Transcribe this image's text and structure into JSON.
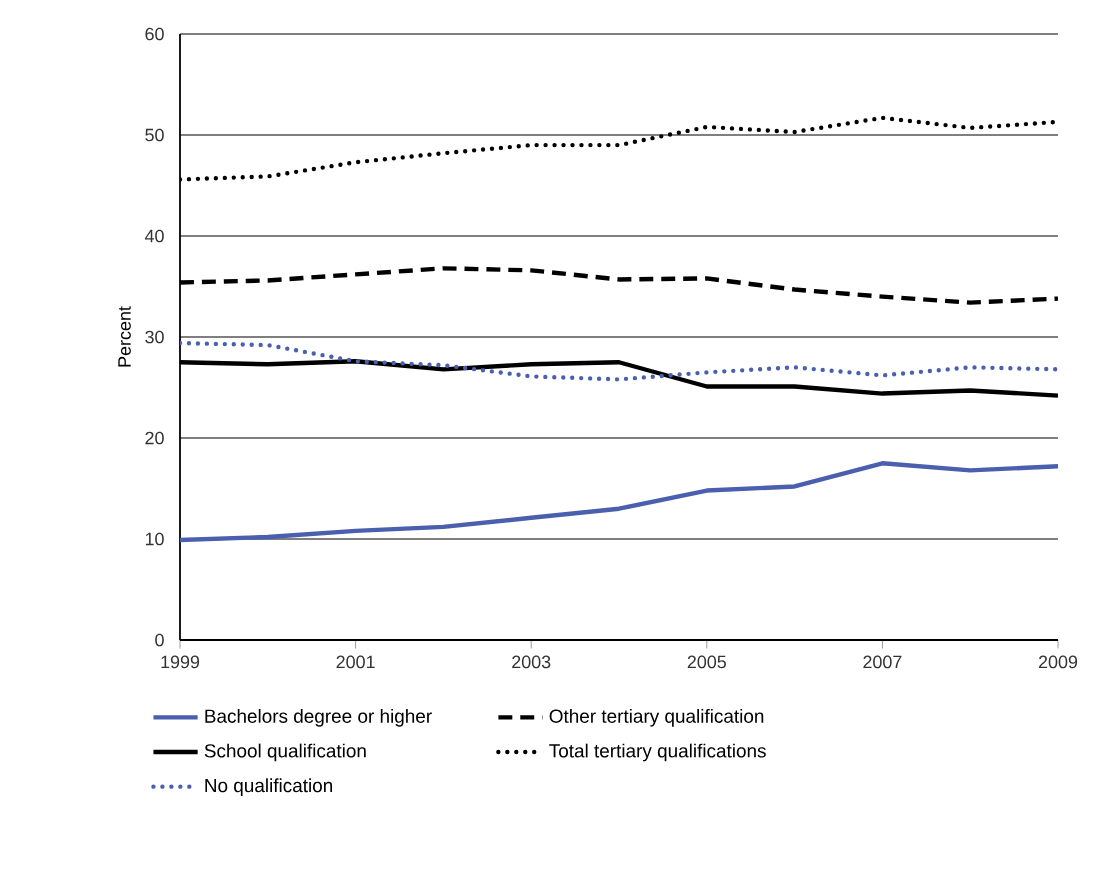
{
  "chart_data": {
    "type": "line",
    "ylabel": "Percent",
    "x": [
      1999,
      2000,
      2001,
      2002,
      2003,
      2004,
      2005,
      2006,
      2007,
      2008,
      2009
    ],
    "xlim": [
      1999,
      2009
    ],
    "xticks": [
      1999,
      2001,
      2003,
      2005,
      2007,
      2009
    ],
    "ylim": [
      0,
      60
    ],
    "yticks": [
      0,
      10,
      20,
      30,
      40,
      50,
      60
    ],
    "grid": "y",
    "legend": "bottom",
    "marker": "none",
    "series": [
      {
        "name": "Bachelors degree or higher",
        "color": "#4a5fad",
        "line_style": "solid",
        "values": [
          9.9,
          10.2,
          10.8,
          11.2,
          12.1,
          13.0,
          14.8,
          15.2,
          17.5,
          16.8,
          17.2
        ]
      },
      {
        "name": "Other tertiary qualification",
        "color": "#000000",
        "line_style": "dashed",
        "values": [
          35.4,
          35.6,
          36.2,
          36.8,
          36.6,
          35.7,
          35.8,
          34.7,
          34.0,
          33.4,
          33.8
        ]
      },
      {
        "name": "School qualification",
        "color": "#000000",
        "line_style": "solid",
        "values": [
          27.5,
          27.3,
          27.6,
          26.8,
          27.3,
          27.5,
          25.1,
          25.1,
          24.4,
          24.7,
          24.2
        ]
      },
      {
        "name": "Total tertiary qualifications",
        "color": "#000000",
        "line_style": "dotted",
        "values": [
          45.6,
          45.9,
          47.3,
          48.2,
          49.0,
          49.0,
          50.8,
          50.3,
          51.7,
          50.7,
          51.3
        ]
      },
      {
        "name": "No qualification",
        "color": "#4a5fad",
        "line_style": "dotted",
        "values": [
          29.4,
          29.2,
          27.6,
          27.2,
          26.1,
          25.8,
          26.5,
          27.0,
          26.2,
          27.0,
          26.8
        ]
      }
    ]
  }
}
